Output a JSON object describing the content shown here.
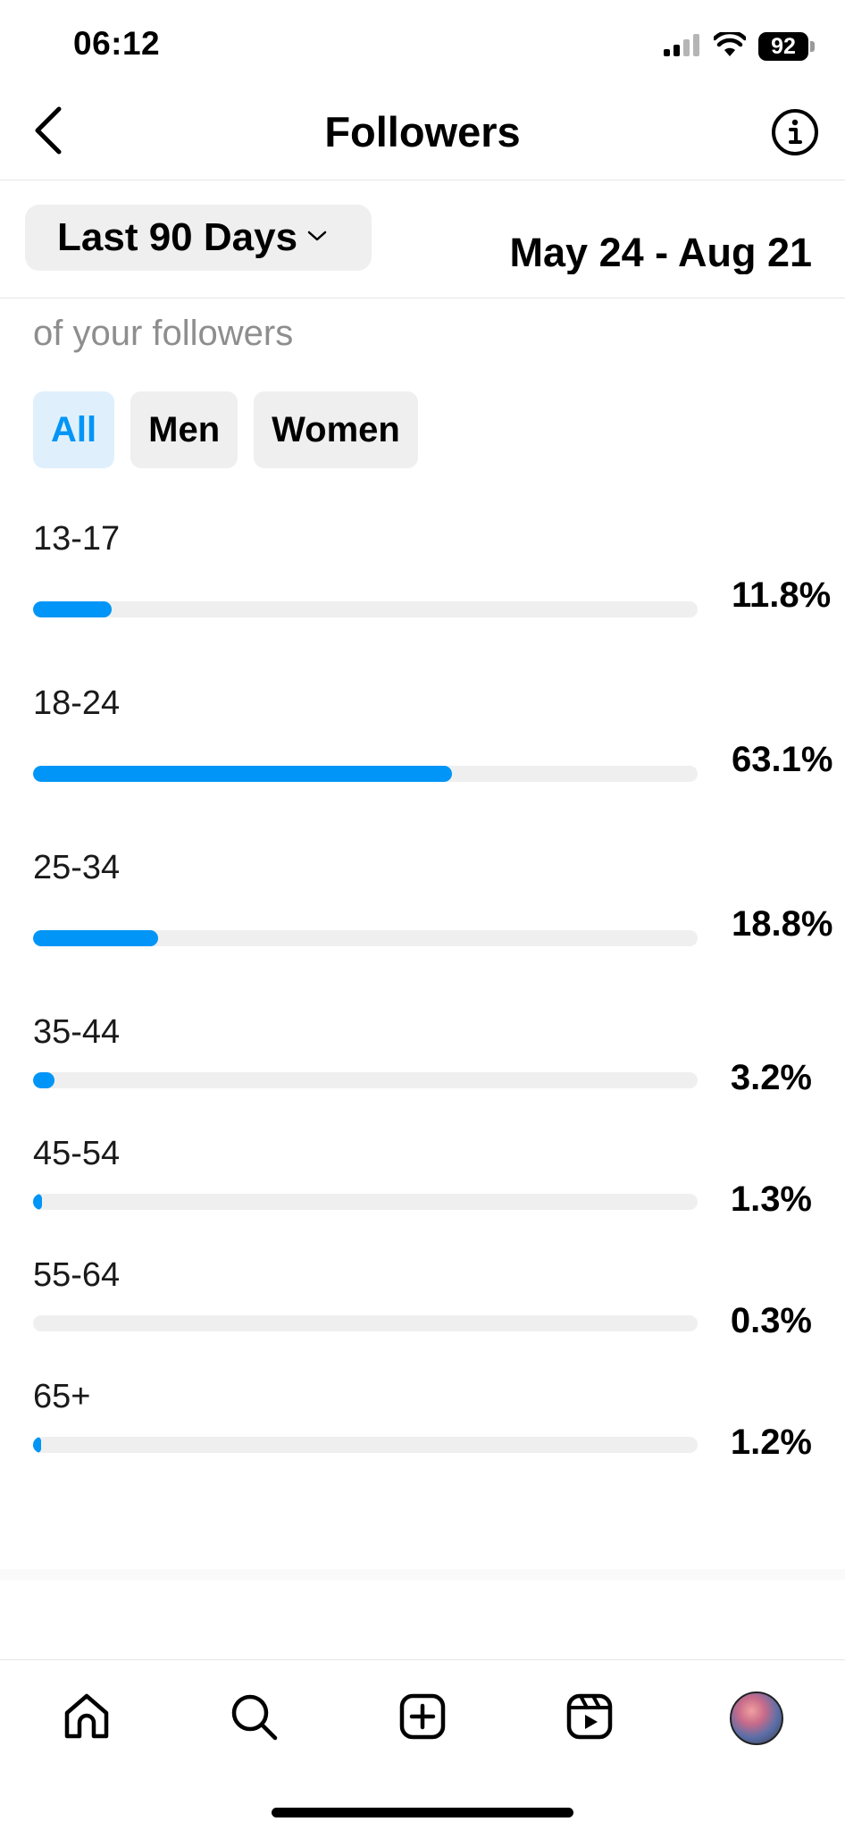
{
  "status_bar": {
    "time": "06:12",
    "battery": "92"
  },
  "header": {
    "title": "Followers"
  },
  "filter": {
    "range_label": "Last 90 Days",
    "date_range": "May 24 - Aug 21"
  },
  "section": {
    "subtitle": "of your followers",
    "segments": [
      "All",
      "Men",
      "Women"
    ],
    "selected_segment": "All"
  },
  "chart_data": {
    "type": "bar",
    "categories": [
      "13-17",
      "18-24",
      "25-34",
      "35-44",
      "45-54",
      "55-64",
      "65+"
    ],
    "values": [
      11.8,
      63.1,
      18.8,
      3.2,
      1.3,
      0.3,
      1.2
    ],
    "value_labels": [
      "11.8%",
      "63.1%",
      "18.8%",
      "3.2%",
      "1.3%",
      "0.3%",
      "1.2%"
    ],
    "unit": "%",
    "orientation": "horizontal",
    "max": 100,
    "bar_color": "#0095f6",
    "track_color": "#efefef"
  },
  "tabs": [
    "home-icon",
    "search-icon",
    "create-icon",
    "reels-icon",
    "profile-avatar"
  ],
  "colors": {
    "accent": "#0095f6",
    "segment_active_bg": "#dff0fc",
    "muted_text": "#8e8e8e"
  }
}
